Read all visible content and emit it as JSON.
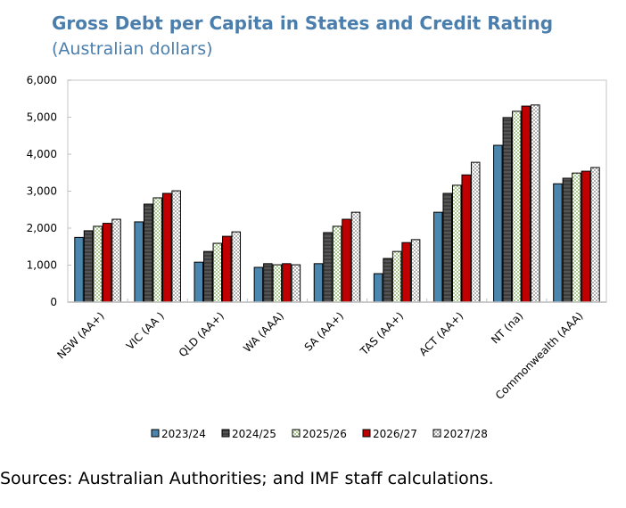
{
  "title": "Gross Debt per Capita in States and Credit Rating",
  "subtitle": "(Australian dollars)",
  "source": "Sources: Australian Authorities; and IMF staff calculations.",
  "chart_data": {
    "type": "bar",
    "title": "Gross Debt per Capita in States and Credit Rating",
    "subtitle": "(Australian dollars)",
    "categories": [
      "NSW (AA+)",
      "VIC (AA )",
      "QLD (AA+)",
      "WA (AAA)",
      "SA (AA+)",
      "TAS (AA+)",
      "ACT (AA+)",
      "NT (na)",
      "Commonwealth (AAA)"
    ],
    "ylim": [
      0,
      6000
    ],
    "yticks": [
      0,
      1000,
      2000,
      3000,
      4000,
      5000,
      6000
    ],
    "ytick_labels": [
      "0",
      "1,000",
      "2,000",
      "3,000",
      "4,000",
      "5,000",
      "6,000"
    ],
    "grid": false,
    "legend_position": "bottom",
    "series": [
      {
        "name": "2023/24",
        "color": "#4a86ad",
        "pattern": "solid",
        "values": [
          1750,
          2170,
          1080,
          940,
          1040,
          770,
          2430,
          4240,
          3200
        ]
      },
      {
        "name": "2024/25",
        "color": "#3d3d3d",
        "pattern": "dark-stripe",
        "values": [
          1930,
          2650,
          1370,
          1040,
          1880,
          1180,
          2940,
          4990,
          3350
        ]
      },
      {
        "name": "2025/26",
        "color": "#a9c98f",
        "pattern": "green-checker",
        "values": [
          2050,
          2820,
          1590,
          1010,
          2050,
          1370,
          3160,
          5160,
          3490
        ]
      },
      {
        "name": "2026/27",
        "color": "#c00000",
        "pattern": "solid",
        "values": [
          2130,
          2940,
          1780,
          1040,
          2240,
          1610,
          3440,
          5300,
          3540
        ]
      },
      {
        "name": "2027/28",
        "color": "#b0b0b0",
        "pattern": "grey-checker",
        "values": [
          2240,
          3010,
          1900,
          1010,
          2430,
          1690,
          3780,
          5330,
          3640
        ]
      }
    ]
  }
}
